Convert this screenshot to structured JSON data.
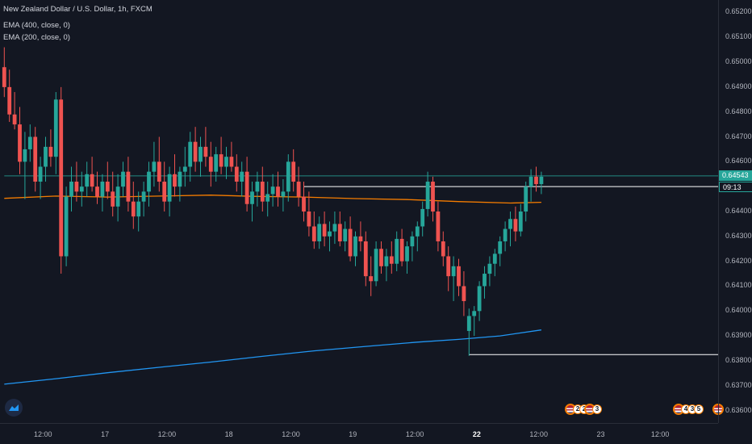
{
  "legend": {
    "symbol": "New Zealand Dollar / U.S. Dollar, 1h, FXCM",
    "ema1": "EMA (400, close, 0)",
    "ema2": "EMA (200, close, 0)"
  },
  "price_scale": [
    "0.65200",
    "0.65100",
    "0.65000",
    "0.64900",
    "0.64800",
    "0.64700",
    "0.64600",
    "0.64400",
    "0.64300",
    "0.64200",
    "0.64100",
    "0.64000",
    "0.63900",
    "0.63800",
    "0.63700",
    "0.63600"
  ],
  "current_price_tag": "0.64543",
  "countdown_tag": "09:13",
  "time_scale": [
    {
      "label": "12:00",
      "bold": false
    },
    {
      "label": "17",
      "bold": false
    },
    {
      "label": "12:00",
      "bold": false
    },
    {
      "label": "18",
      "bold": false
    },
    {
      "label": "12:00",
      "bold": false
    },
    {
      "label": "19",
      "bold": false
    },
    {
      "label": "12:00",
      "bold": false
    },
    {
      "label": "22",
      "bold": true
    },
    {
      "label": "12:00",
      "bold": false
    },
    {
      "label": "23",
      "bold": false
    },
    {
      "label": "12:00",
      "bold": false
    }
  ],
  "events": [
    {
      "badges": [
        "2",
        "2"
      ]
    },
    {
      "badges": [
        "3"
      ]
    },
    {
      "badges": [
        "4",
        "3",
        "5"
      ]
    },
    {
      "badges": []
    }
  ],
  "colors": {
    "up": "#26a69a",
    "down": "#ef5350",
    "ema400": "#f57c00",
    "ema200": "#2196f3",
    "level": "#ffffff",
    "background": "#131722"
  },
  "icons": {
    "logo": "tradingview-logo-icon",
    "event": "us-flag-icon"
  },
  "chart_data": {
    "type": "candlestick",
    "title": "New Zealand Dollar / U.S. Dollar, 1h, FXCM",
    "ylim": [
      0.6355,
      0.6525
    ],
    "ohlc": [
      [
        0.6498,
        0.6506,
        0.6486,
        0.649
      ],
      [
        0.649,
        0.6497,
        0.6476,
        0.6479
      ],
      [
        0.6479,
        0.6488,
        0.6473,
        0.6475
      ],
      [
        0.6475,
        0.6482,
        0.6455,
        0.646
      ],
      [
        0.646,
        0.6472,
        0.6445,
        0.6465
      ],
      [
        0.6465,
        0.6475,
        0.646,
        0.647
      ],
      [
        0.647,
        0.6474,
        0.6448,
        0.6452
      ],
      [
        0.6452,
        0.6462,
        0.6445,
        0.6458
      ],
      [
        0.6458,
        0.647,
        0.6452,
        0.6466
      ],
      [
        0.6466,
        0.6473,
        0.6458,
        0.6462
      ],
      [
        0.6462,
        0.6488,
        0.6455,
        0.6485
      ],
      [
        0.6485,
        0.649,
        0.6415,
        0.6422
      ],
      [
        0.6422,
        0.645,
        0.6418,
        0.6446
      ],
      [
        0.6446,
        0.6458,
        0.644,
        0.6452
      ],
      [
        0.6452,
        0.646,
        0.6444,
        0.6448
      ],
      [
        0.6448,
        0.6456,
        0.6442,
        0.645
      ],
      [
        0.645,
        0.646,
        0.6446,
        0.6455
      ],
      [
        0.6455,
        0.6462,
        0.6448,
        0.645
      ],
      [
        0.645,
        0.6456,
        0.6443,
        0.6446
      ],
      [
        0.6446,
        0.6455,
        0.644,
        0.6452
      ],
      [
        0.6452,
        0.646,
        0.6445,
        0.6448
      ],
      [
        0.6448,
        0.6456,
        0.6438,
        0.6442
      ],
      [
        0.6442,
        0.6455,
        0.6436,
        0.645
      ],
      [
        0.645,
        0.646,
        0.6446,
        0.6456
      ],
      [
        0.6456,
        0.6462,
        0.644,
        0.6444
      ],
      [
        0.6444,
        0.6452,
        0.6433,
        0.6438
      ],
      [
        0.6438,
        0.6448,
        0.6432,
        0.6444
      ],
      [
        0.6444,
        0.6452,
        0.6438,
        0.6448
      ],
      [
        0.6448,
        0.646,
        0.6442,
        0.6456
      ],
      [
        0.6456,
        0.6468,
        0.645,
        0.646
      ],
      [
        0.646,
        0.647,
        0.6448,
        0.6452
      ],
      [
        0.6452,
        0.646,
        0.644,
        0.6444
      ],
      [
        0.6444,
        0.6458,
        0.6438,
        0.6455
      ],
      [
        0.6455,
        0.6463,
        0.6446,
        0.645
      ],
      [
        0.645,
        0.6458,
        0.6444,
        0.6456
      ],
      [
        0.6456,
        0.6466,
        0.645,
        0.6458
      ],
      [
        0.6458,
        0.6472,
        0.6452,
        0.6468
      ],
      [
        0.6468,
        0.6474,
        0.6456,
        0.646
      ],
      [
        0.646,
        0.647,
        0.6454,
        0.6466
      ],
      [
        0.6466,
        0.6474,
        0.6458,
        0.6462
      ],
      [
        0.6462,
        0.6468,
        0.645,
        0.6456
      ],
      [
        0.6456,
        0.6466,
        0.6452,
        0.6463
      ],
      [
        0.6463,
        0.647,
        0.6455,
        0.6458
      ],
      [
        0.6458,
        0.6466,
        0.6453,
        0.6462
      ],
      [
        0.6462,
        0.6468,
        0.6456,
        0.6458
      ],
      [
        0.6458,
        0.6463,
        0.6448,
        0.6452
      ],
      [
        0.6452,
        0.646,
        0.6446,
        0.6456
      ],
      [
        0.6456,
        0.6462,
        0.644,
        0.6443
      ],
      [
        0.6443,
        0.6452,
        0.6436,
        0.6448
      ],
      [
        0.6448,
        0.6456,
        0.6442,
        0.6452
      ],
      [
        0.6452,
        0.6458,
        0.644,
        0.6444
      ],
      [
        0.6444,
        0.6452,
        0.6438,
        0.6447
      ],
      [
        0.6447,
        0.6455,
        0.6442,
        0.645
      ],
      [
        0.645,
        0.6456,
        0.6442,
        0.6446
      ],
      [
        0.6446,
        0.6453,
        0.644,
        0.6448
      ],
      [
        0.6448,
        0.6463,
        0.6444,
        0.646
      ],
      [
        0.646,
        0.6465,
        0.6448,
        0.6452
      ],
      [
        0.6452,
        0.6458,
        0.6442,
        0.6446
      ],
      [
        0.6446,
        0.6452,
        0.6436,
        0.644
      ],
      [
        0.644,
        0.6448,
        0.643,
        0.6434
      ],
      [
        0.6434,
        0.644,
        0.6425,
        0.6428
      ],
      [
        0.6428,
        0.6438,
        0.6425,
        0.6435
      ],
      [
        0.6435,
        0.644,
        0.6426,
        0.643
      ],
      [
        0.643,
        0.6436,
        0.6424,
        0.6432
      ],
      [
        0.6432,
        0.644,
        0.6427,
        0.6435
      ],
      [
        0.6435,
        0.644,
        0.6426,
        0.6428
      ],
      [
        0.6428,
        0.6436,
        0.6424,
        0.6433
      ],
      [
        0.6433,
        0.6438,
        0.642,
        0.6422
      ],
      [
        0.6422,
        0.6432,
        0.6418,
        0.643
      ],
      [
        0.643,
        0.6436,
        0.6424,
        0.6428
      ],
      [
        0.6428,
        0.6432,
        0.641,
        0.6414
      ],
      [
        0.6414,
        0.6422,
        0.6406,
        0.6412
      ],
      [
        0.6412,
        0.6428,
        0.641,
        0.6425
      ],
      [
        0.6425,
        0.6428,
        0.6415,
        0.6418
      ],
      [
        0.6418,
        0.6425,
        0.6412,
        0.6422
      ],
      [
        0.6422,
        0.6428,
        0.6415,
        0.6419
      ],
      [
        0.6419,
        0.6432,
        0.6416,
        0.6429
      ],
      [
        0.6429,
        0.6433,
        0.6418,
        0.642
      ],
      [
        0.642,
        0.6428,
        0.6415,
        0.6426
      ],
      [
        0.6426,
        0.6432,
        0.642,
        0.643
      ],
      [
        0.643,
        0.6436,
        0.6424,
        0.6434
      ],
      [
        0.6434,
        0.6444,
        0.643,
        0.6441
      ],
      [
        0.6441,
        0.6456,
        0.6438,
        0.6452
      ],
      [
        0.6452,
        0.6454,
        0.6436,
        0.644
      ],
      [
        0.644,
        0.6444,
        0.6424,
        0.6428
      ],
      [
        0.6428,
        0.6432,
        0.6418,
        0.6422
      ],
      [
        0.6422,
        0.6426,
        0.6408,
        0.6414
      ],
      [
        0.6414,
        0.6422,
        0.6404,
        0.6418
      ],
      [
        0.6418,
        0.6421,
        0.6406,
        0.641
      ],
      [
        0.641,
        0.6416,
        0.6398,
        0.6404
      ],
      [
        0.6392,
        0.6401,
        0.6382,
        0.6398
      ],
      [
        0.6398,
        0.6402,
        0.639,
        0.64
      ],
      [
        0.64,
        0.6412,
        0.6396,
        0.641
      ],
      [
        0.641,
        0.6418,
        0.6405,
        0.6415
      ],
      [
        0.6415,
        0.6422,
        0.641,
        0.6419
      ],
      [
        0.6419,
        0.6425,
        0.6414,
        0.6423
      ],
      [
        0.6423,
        0.643,
        0.6418,
        0.6428
      ],
      [
        0.6428,
        0.6436,
        0.6424,
        0.6433
      ],
      [
        0.6433,
        0.644,
        0.6426,
        0.6437
      ],
      [
        0.6437,
        0.6442,
        0.6428,
        0.6432
      ],
      [
        0.6432,
        0.6443,
        0.643,
        0.644
      ],
      [
        0.644,
        0.6452,
        0.6436,
        0.645
      ],
      [
        0.645,
        0.6457,
        0.6444,
        0.6454
      ],
      [
        0.6454,
        0.6458,
        0.6448,
        0.6451
      ],
      [
        0.6451,
        0.6456,
        0.6447,
        0.6454
      ]
    ],
    "ema400": [
      [
        0,
        0.64453
      ],
      [
        10,
        0.64462
      ],
      [
        20,
        0.64458
      ],
      [
        30,
        0.64462
      ],
      [
        40,
        0.64466
      ],
      [
        48,
        0.64461
      ],
      [
        58,
        0.64458
      ],
      [
        68,
        0.64452
      ],
      [
        78,
        0.64448
      ],
      [
        88,
        0.6444
      ],
      [
        98,
        0.64434
      ],
      [
        104,
        0.64437
      ]
    ],
    "ema200": [
      [
        0,
        0.63706
      ],
      [
        10,
        0.63728
      ],
      [
        20,
        0.63752
      ],
      [
        30,
        0.63774
      ],
      [
        40,
        0.63795
      ],
      [
        50,
        0.63818
      ],
      [
        60,
        0.6384
      ],
      [
        70,
        0.63858
      ],
      [
        80,
        0.63875
      ],
      [
        88,
        0.63886
      ],
      [
        96,
        0.639
      ],
      [
        104,
        0.63924
      ]
    ],
    "lines": [
      {
        "name": "resistance-level",
        "y": 0.645,
        "x_from": 58,
        "x_to": null
      },
      {
        "name": "support-level",
        "y": 0.63825,
        "x_from": 90,
        "x_to": null
      },
      {
        "name": "current-price-line",
        "y": 0.64543,
        "x_from": 0,
        "x_to": null
      }
    ]
  }
}
